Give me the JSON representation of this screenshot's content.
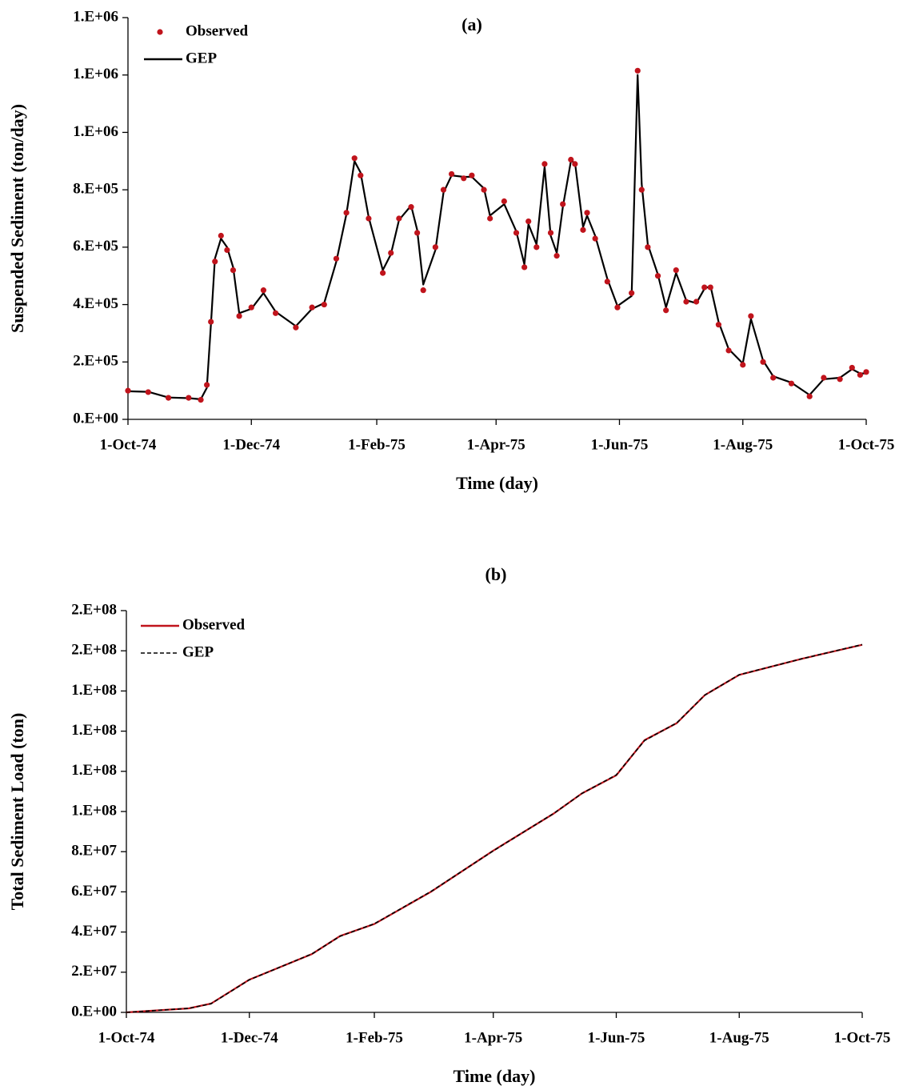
{
  "chart_data": [
    {
      "type": "line",
      "title": "(a)",
      "x_label": "Time (day)",
      "y_label": "Suspended Sediment (ton/day)",
      "legend": "top-left",
      "grid": false,
      "xlim": [
        "1974-10-01",
        "1975-10-01"
      ],
      "xticks": [
        {
          "value": "1974-10-01",
          "label": "1-Oct-74"
        },
        {
          "value": "1974-12-01",
          "label": "1-Dec-74"
        },
        {
          "value": "1975-02-01",
          "label": "1-Feb-75"
        },
        {
          "value": "1975-04-01",
          "label": "1-Apr-75"
        },
        {
          "value": "1975-06-01",
          "label": "1-Jun-75"
        },
        {
          "value": "1975-08-01",
          "label": "1-Aug-75"
        },
        {
          "value": "1975-10-01",
          "label": "1-Oct-75"
        }
      ],
      "ylim": [
        0,
        1400000
      ],
      "yticks": [
        {
          "value": 0,
          "label": "0.E+00"
        },
        {
          "value": 200000,
          "label": "2.E+05"
        },
        {
          "value": 400000,
          "label": "4.E+05"
        },
        {
          "value": 600000,
          "label": "6.E+05"
        },
        {
          "value": 800000,
          "label": "8.E+05"
        },
        {
          "value": 1000000,
          "label": "1.E+06"
        },
        {
          "value": 1200000,
          "label": "1.E+06"
        },
        {
          "value": 1400000,
          "label": "1.E+06"
        }
      ],
      "x": [
        "1974-10-01",
        "1974-10-11",
        "1974-10-21",
        "1974-10-31",
        "1974-11-06",
        "1974-11-09",
        "1974-11-11",
        "1974-11-13",
        "1974-11-16",
        "1974-11-19",
        "1974-11-22",
        "1974-11-25",
        "1974-12-01",
        "1974-12-07",
        "1974-12-13",
        "1974-12-23",
        "1974-12-31",
        "1975-01-06",
        "1975-01-12",
        "1975-01-17",
        "1975-01-21",
        "1975-01-24",
        "1975-01-28",
        "1975-02-04",
        "1975-02-08",
        "1975-02-12",
        "1975-02-18",
        "1975-02-21",
        "1975-02-24",
        "1975-03-02",
        "1975-03-06",
        "1975-03-10",
        "1975-03-16",
        "1975-03-20",
        "1975-03-26",
        "1975-03-29",
        "1975-04-05",
        "1975-04-11",
        "1975-04-15",
        "1975-04-17",
        "1975-04-21",
        "1975-04-25",
        "1975-04-28",
        "1975-05-01",
        "1975-05-04",
        "1975-05-08",
        "1975-05-10",
        "1975-05-14",
        "1975-05-16",
        "1975-05-20",
        "1975-05-26",
        "1975-05-31",
        "1975-06-07",
        "1975-06-10",
        "1975-06-12",
        "1975-06-15",
        "1975-06-20",
        "1975-06-24",
        "1975-06-29",
        "1975-07-04",
        "1975-07-09",
        "1975-07-13",
        "1975-07-16",
        "1975-07-20",
        "1975-07-25",
        "1975-08-01",
        "1975-08-05",
        "1975-08-11",
        "1975-08-16",
        "1975-08-25",
        "1975-09-03",
        "1975-09-10",
        "1975-09-18",
        "1975-09-24",
        "1975-09-28",
        "1975-10-01"
      ],
      "series": [
        {
          "name": "GEP",
          "color": "#000000",
          "style": "line",
          "values": [
            98000,
            96000,
            76000,
            74000,
            70000,
            110000,
            330000,
            560000,
            630000,
            600000,
            530000,
            370000,
            385000,
            440000,
            375000,
            325000,
            385000,
            405000,
            550000,
            715000,
            900000,
            860000,
            705000,
            520000,
            575000,
            695000,
            745000,
            660000,
            470000,
            590000,
            790000,
            850000,
            845000,
            845000,
            805000,
            710000,
            750000,
            655000,
            540000,
            680000,
            610000,
            880000,
            640000,
            580000,
            740000,
            900000,
            895000,
            670000,
            710000,
            640000,
            490000,
            395000,
            430000,
            1200000,
            820000,
            610000,
            505000,
            390000,
            510000,
            415000,
            405000,
            455000,
            465000,
            340000,
            245000,
            195000,
            350000,
            205000,
            150000,
            128000,
            85000,
            140000,
            145000,
            175000,
            160000,
            160000
          ]
        },
        {
          "name": "Observed",
          "color": "#c0141c",
          "style": "markers",
          "values": [
            100000,
            95000,
            75000,
            75000,
            68000,
            120000,
            340000,
            550000,
            640000,
            590000,
            520000,
            360000,
            390000,
            450000,
            370000,
            320000,
            390000,
            400000,
            560000,
            720000,
            910000,
            850000,
            700000,
            510000,
            580000,
            700000,
            740000,
            650000,
            450000,
            600000,
            800000,
            855000,
            840000,
            850000,
            800000,
            700000,
            760000,
            650000,
            530000,
            690000,
            600000,
            890000,
            650000,
            570000,
            750000,
            905000,
            890000,
            660000,
            720000,
            630000,
            480000,
            390000,
            440000,
            1215000,
            800000,
            600000,
            500000,
            380000,
            520000,
            410000,
            410000,
            460000,
            460000,
            330000,
            240000,
            190000,
            360000,
            200000,
            145000,
            125000,
            80000,
            145000,
            140000,
            180000,
            155000,
            165000
          ]
        }
      ]
    },
    {
      "type": "line",
      "title": "(b)",
      "x_label": "Time (day)",
      "y_label": "Total Sediment Load (ton)",
      "legend": "top-left",
      "grid": false,
      "xlim": [
        "1974-10-01",
        "1975-10-01"
      ],
      "xticks": [
        {
          "value": "1974-10-01",
          "label": "1-Oct-74"
        },
        {
          "value": "1974-12-01",
          "label": "1-Dec-74"
        },
        {
          "value": "1975-02-01",
          "label": "1-Feb-75"
        },
        {
          "value": "1975-04-01",
          "label": "1-Apr-75"
        },
        {
          "value": "1975-06-01",
          "label": "1-Jun-75"
        },
        {
          "value": "1975-08-01",
          "label": "1-Aug-75"
        },
        {
          "value": "1975-10-01",
          "label": "1-Oct-75"
        }
      ],
      "ylim": [
        0,
        200000000
      ],
      "yticks": [
        {
          "value": 0,
          "label": "0.E+00"
        },
        {
          "value": 20000000,
          "label": "2.E+07"
        },
        {
          "value": 40000000,
          "label": "4.E+07"
        },
        {
          "value": 60000000,
          "label": "6.E+07"
        },
        {
          "value": 80000000,
          "label": "8.E+07"
        },
        {
          "value": 100000000,
          "label": "1.E+08"
        },
        {
          "value": 120000000,
          "label": "1.E+08"
        },
        {
          "value": 140000000,
          "label": "1.E+08"
        },
        {
          "value": 160000000,
          "label": "1.E+08"
        },
        {
          "value": 180000000,
          "label": "2.E+08"
        },
        {
          "value": 200000000,
          "label": "2.E+08"
        }
      ],
      "x": [
        "1974-10-01",
        "1974-11-01",
        "1974-11-12",
        "1974-12-01",
        "1975-01-01",
        "1975-01-15",
        "1975-02-01",
        "1975-03-01",
        "1975-04-01",
        "1975-05-01",
        "1975-05-15",
        "1975-06-01",
        "1975-06-15",
        "1975-07-01",
        "1975-07-15",
        "1975-08-01",
        "1975-09-01",
        "1975-10-01"
      ],
      "series": [
        {
          "name": "Observed",
          "color": "#c0141c",
          "style": "line",
          "values": [
            0,
            2000000,
            4400000,
            16300000,
            29000000,
            38000000,
            44000000,
            60000000,
            80500000,
            99000000,
            109000000,
            118000000,
            135500000,
            144000000,
            158000000,
            168000000,
            176000000,
            183000000
          ]
        },
        {
          "name": "GEP",
          "color": "#000000",
          "style": "dashed",
          "values": [
            0,
            2000000,
            4300000,
            16200000,
            29100000,
            37900000,
            44100000,
            60100000,
            80400000,
            99100000,
            109000000,
            118200000,
            135300000,
            144100000,
            158000000,
            168100000,
            176000000,
            183100000
          ]
        }
      ]
    }
  ]
}
